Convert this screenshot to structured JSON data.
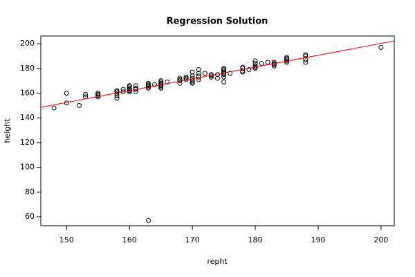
{
  "chart_data": {
    "type": "scatter",
    "title": "Regression Solution",
    "x_label": "repht",
    "y_label": "height",
    "x": [
      148,
      150,
      150,
      152,
      153,
      153,
      155,
      155,
      155,
      155,
      158,
      158,
      158,
      158,
      158,
      159,
      159,
      160,
      160,
      160,
      160,
      160,
      160,
      161,
      161,
      161,
      161,
      163,
      163,
      163,
      163,
      163,
      163,
      164,
      165,
      165,
      165,
      165,
      165,
      165,
      165,
      166,
      168,
      168,
      168,
      168,
      169,
      169,
      169,
      170,
      170,
      170,
      170,
      170,
      170,
      171,
      171,
      171,
      171,
      171,
      172,
      173,
      173,
      173,
      174,
      174,
      175,
      175,
      175,
      175,
      175,
      175,
      175,
      175,
      176,
      178,
      178,
      178,
      178,
      179,
      180,
      180,
      180,
      180,
      180,
      181,
      182,
      183,
      183,
      183,
      183,
      185,
      185,
      185,
      185,
      185,
      188,
      188,
      188,
      188,
      200
    ],
    "y": [
      148,
      160,
      152,
      150,
      157,
      159,
      157,
      158,
      159,
      160,
      156,
      158,
      160,
      161,
      162,
      161,
      163,
      161,
      162,
      163,
      164,
      165,
      166,
      161,
      163,
      164,
      166,
      164,
      165,
      166,
      167,
      168,
      57,
      167,
      164,
      165,
      166,
      167,
      168,
      169,
      170,
      169,
      168,
      170,
      171,
      172,
      171,
      172,
      173,
      168,
      169,
      170,
      172,
      174,
      177,
      171,
      173,
      174,
      176,
      179,
      176,
      173,
      174,
      175,
      172,
      175,
      169,
      173,
      175,
      176,
      177,
      178,
      179,
      180,
      176,
      177,
      178,
      180,
      181,
      179,
      180,
      181,
      182,
      184,
      186,
      184,
      185,
      182,
      183,
      184,
      185,
      185,
      186,
      187,
      188,
      189,
      185,
      187,
      190,
      191,
      197
    ],
    "regression": {
      "intercept": 9.2,
      "slope": 0.955,
      "color": "#ff0000"
    },
    "xlim": [
      145.9,
      202.1
    ],
    "ylim": [
      52.7,
      206.2
    ],
    "xticks": [
      150,
      160,
      170,
      180,
      190,
      200
    ],
    "yticks": [
      60,
      80,
      100,
      120,
      140,
      160,
      180,
      200
    ]
  }
}
